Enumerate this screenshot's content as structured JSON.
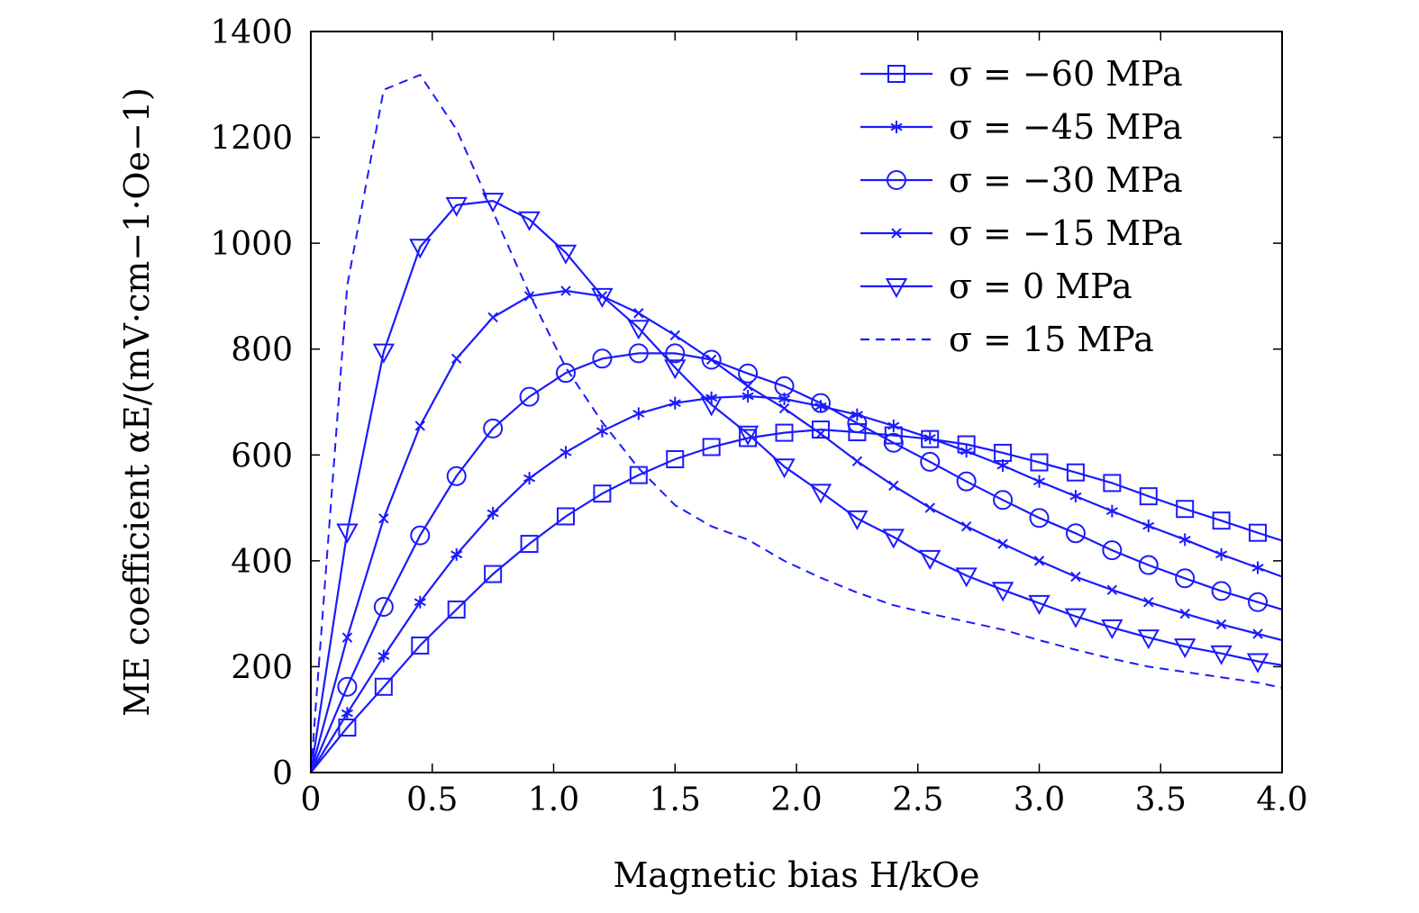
{
  "chart_data": {
    "type": "line",
    "xlabel": "Magnetic bias H/kOe",
    "ylabel": "ME coefficient αE/(mV·cm−1·Oe−1)",
    "xlim": [
      0,
      4.0
    ],
    "ylim": [
      0,
      1400
    ],
    "xticks": [
      0,
      0.5,
      1.0,
      1.5,
      2.0,
      2.5,
      3.0,
      3.5,
      4.0
    ],
    "xtick_labels": [
      "0",
      "0.5",
      "1.0",
      "1.5",
      "2.0",
      "2.5",
      "3.0",
      "3.5",
      "4.0"
    ],
    "yticks": [
      0,
      200,
      400,
      600,
      800,
      1000,
      1200,
      1400
    ],
    "ytick_labels": [
      "0",
      "200",
      "400",
      "600",
      "800",
      "1000",
      "1200",
      "1400"
    ],
    "grid": false,
    "legend_position": "top-right",
    "color": "#1a1aff",
    "series": [
      {
        "name": "σ = −60 MPa",
        "marker": "square",
        "dashed": false,
        "x": [
          0,
          0.15,
          0.3,
          0.45,
          0.6,
          0.75,
          0.9,
          1.05,
          1.2,
          1.35,
          1.5,
          1.65,
          1.8,
          1.95,
          2.1,
          2.25,
          2.4,
          2.55,
          2.7,
          2.85,
          3.0,
          3.15,
          3.3,
          3.45,
          3.6,
          3.75,
          3.9,
          4.0
        ],
        "y": [
          0,
          85,
          162,
          240,
          308,
          375,
          432,
          484,
          527,
          562,
          592,
          615,
          632,
          642,
          648,
          643,
          637,
          630,
          620,
          604,
          586,
          567,
          547,
          522,
          498,
          476,
          453,
          438
        ]
      },
      {
        "name": "σ = −45 MPa",
        "marker": "asterisk",
        "dashed": false,
        "x": [
          0,
          0.15,
          0.3,
          0.45,
          0.6,
          0.75,
          0.9,
          1.05,
          1.2,
          1.35,
          1.5,
          1.65,
          1.8,
          1.95,
          2.1,
          2.25,
          2.4,
          2.55,
          2.7,
          2.85,
          3.0,
          3.15,
          3.3,
          3.45,
          3.6,
          3.75,
          3.9,
          4.0
        ],
        "y": [
          0,
          112,
          220,
          322,
          412,
          490,
          556,
          605,
          645,
          678,
          698,
          708,
          711,
          706,
          692,
          676,
          655,
          632,
          607,
          580,
          550,
          522,
          494,
          466,
          440,
          412,
          387,
          370
        ]
      },
      {
        "name": "σ = −30 MPa",
        "marker": "circle",
        "dashed": false,
        "x": [
          0,
          0.15,
          0.3,
          0.45,
          0.6,
          0.75,
          0.9,
          1.05,
          1.2,
          1.35,
          1.5,
          1.65,
          1.8,
          1.95,
          2.1,
          2.25,
          2.4,
          2.55,
          2.7,
          2.85,
          3.0,
          3.15,
          3.3,
          3.45,
          3.6,
          3.75,
          3.9,
          4.0
        ],
        "y": [
          0,
          162,
          313,
          448,
          560,
          650,
          710,
          755,
          782,
          792,
          792,
          780,
          754,
          730,
          698,
          660,
          623,
          587,
          550,
          515,
          481,
          452,
          420,
          392,
          367,
          343,
          322,
          308
        ]
      },
      {
        "name": "σ = −15 MPa",
        "marker": "cross",
        "dashed": false,
        "x": [
          0,
          0.15,
          0.3,
          0.45,
          0.6,
          0.75,
          0.9,
          1.05,
          1.2,
          1.35,
          1.5,
          1.65,
          1.8,
          1.95,
          2.1,
          2.25,
          2.4,
          2.55,
          2.7,
          2.85,
          3.0,
          3.15,
          3.3,
          3.45,
          3.6,
          3.75,
          3.9,
          4.0
        ],
        "y": [
          0,
          255,
          480,
          655,
          782,
          860,
          900,
          910,
          900,
          868,
          826,
          780,
          730,
          688,
          640,
          588,
          542,
          500,
          465,
          432,
          400,
          370,
          345,
          322,
          300,
          280,
          262,
          250
        ]
      },
      {
        "name": "σ = 0 MPa",
        "marker": "triangle-down",
        "dashed": false,
        "x": [
          0,
          0.15,
          0.3,
          0.45,
          0.6,
          0.75,
          0.9,
          1.05,
          1.2,
          1.35,
          1.5,
          1.65,
          1.8,
          1.95,
          2.1,
          2.25,
          2.4,
          2.55,
          2.7,
          2.85,
          3.0,
          3.15,
          3.3,
          3.45,
          3.6,
          3.75,
          3.9,
          4.0
        ],
        "y": [
          0,
          455,
          795,
          993,
          1072,
          1080,
          1045,
          982,
          900,
          840,
          765,
          695,
          640,
          578,
          530,
          480,
          445,
          405,
          372,
          345,
          320,
          295,
          274,
          255,
          238,
          225,
          210,
          203
        ]
      },
      {
        "name": "σ = 15 MPa",
        "marker": "none",
        "dashed": true,
        "x": [
          0,
          0.15,
          0.3,
          0.45,
          0.6,
          0.75,
          0.9,
          1.05,
          1.2,
          1.35,
          1.5,
          1.65,
          1.8,
          1.95,
          2.1,
          2.25,
          2.4,
          2.55,
          2.7,
          2.85,
          3.0,
          3.15,
          3.3,
          3.45,
          3.6,
          3.75,
          3.9,
          4.0
        ],
        "y": [
          0,
          920,
          1290,
          1318,
          1215,
          1060,
          905,
          765,
          662,
          575,
          505,
          465,
          440,
          400,
          368,
          340,
          316,
          300,
          285,
          270,
          250,
          232,
          215,
          200,
          190,
          180,
          170,
          160
        ]
      }
    ]
  }
}
